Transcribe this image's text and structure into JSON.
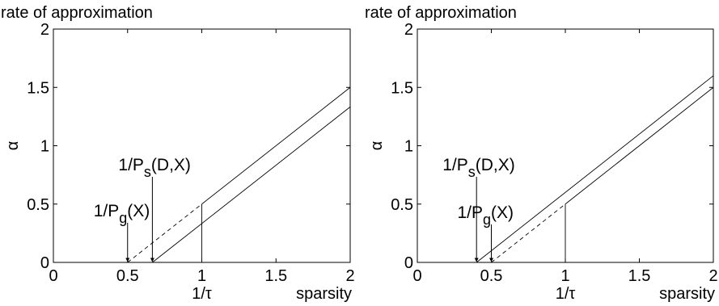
{
  "chart_data": [
    {
      "type": "line",
      "title": "rate of approximation",
      "ylabel": "α",
      "xlabel": "sparsity",
      "xlim": [
        0,
        2
      ],
      "ylim": [
        0,
        2
      ],
      "xticks": [
        "0",
        "0.5",
        "1",
        "1.5",
        "2"
      ],
      "yticks": [
        "0",
        "0.5",
        "1",
        "1.5",
        "2"
      ],
      "extra_xtick": {
        "value": 1,
        "label": "1/τ"
      },
      "grid": false,
      "series": [
        {
          "style": "solid",
          "x": [
            1,
            2
          ],
          "y": [
            0.5,
            1.5
          ]
        },
        {
          "style": "dashed",
          "x": [
            0.5,
            1
          ],
          "y": [
            0,
            0.5
          ]
        },
        {
          "style": "solid",
          "x": [
            0.667,
            2
          ],
          "y": [
            0,
            1.333
          ]
        },
        {
          "style": "solid",
          "x": [
            1,
            1
          ],
          "y": [
            0,
            0.5
          ]
        }
      ],
      "annotations": [
        {
          "base": "1/P",
          "sub": "g",
          "rest": "(X)",
          "x": 0.5
        },
        {
          "base": "1/P",
          "sub": "s",
          "rest": "(D,X)",
          "x": 0.667
        }
      ]
    },
    {
      "type": "line",
      "title": "rate of approximation",
      "ylabel": "α",
      "xlabel": "sparsity",
      "xlim": [
        0,
        2
      ],
      "ylim": [
        0,
        2
      ],
      "xticks": [
        "0",
        "0.5",
        "1",
        "1.5",
        "2"
      ],
      "yticks": [
        "0",
        "0.5",
        "1",
        "1.5",
        "2"
      ],
      "extra_xtick": {
        "value": 1,
        "label": "1/τ"
      },
      "grid": false,
      "series": [
        {
          "style": "solid",
          "x": [
            0.4,
            2
          ],
          "y": [
            0,
            1.6
          ]
        },
        {
          "style": "dashed",
          "x": [
            0.5,
            1
          ],
          "y": [
            0,
            0.5
          ]
        },
        {
          "style": "solid",
          "x": [
            1,
            2
          ],
          "y": [
            0.5,
            1.5
          ]
        },
        {
          "style": "solid",
          "x": [
            1,
            1
          ],
          "y": [
            0,
            0.5
          ]
        }
      ],
      "annotations": [
        {
          "base": "1/P",
          "sub": "s",
          "rest": "(D,X)",
          "x": 0.4
        },
        {
          "base": "1/P",
          "sub": "g",
          "rest": "(X)",
          "x": 0.5
        }
      ]
    }
  ]
}
